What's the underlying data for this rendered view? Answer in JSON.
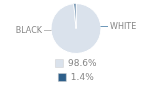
{
  "chart_data": {
    "type": "pie",
    "categories": [
      "WHITE",
      "BLACK"
    ],
    "values": [
      98.6,
      1.4
    ],
    "value_labels": [
      "98.6%",
      "1.4%"
    ],
    "colors": [
      "#dae2ec",
      "#2e5f8a"
    ],
    "legend": "bottom"
  }
}
